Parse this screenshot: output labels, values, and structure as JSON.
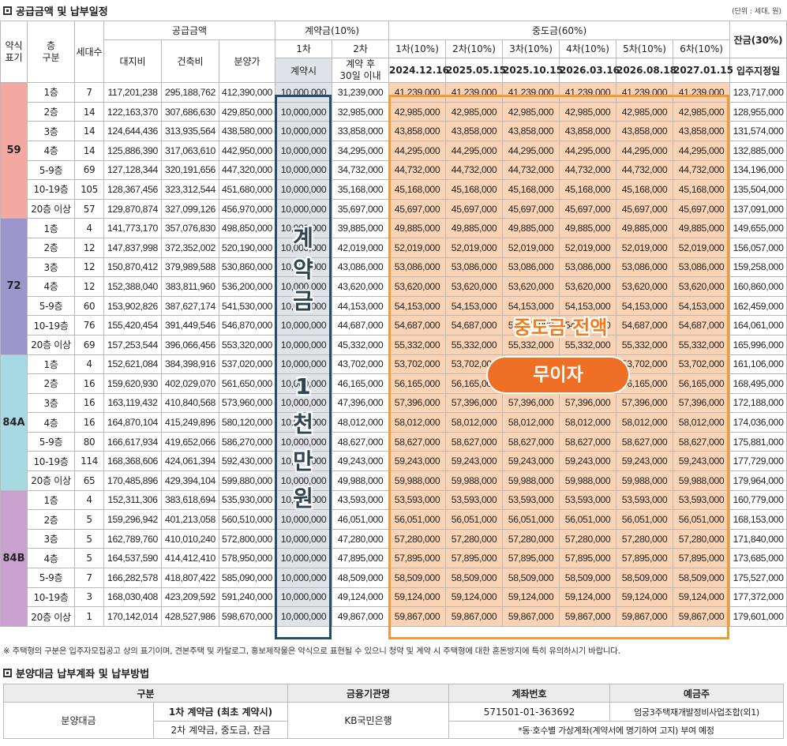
{
  "section1": {
    "title": "공급금액 및 납부일정",
    "unit": "(단위 : 세대, 원)"
  },
  "headers": {
    "type_label": "약식\n표기",
    "floor_label": "층\n구분",
    "count_label": "세대수",
    "supply_label": "공급금액",
    "land_label": "대지비",
    "build_label": "건축비",
    "sale_label": "분양가",
    "deposit_label": "계약금(10%)",
    "dep1_label": "1차",
    "dep2_label": "2차",
    "dep1_timing": "계약시",
    "dep2_timing": "계약 후\n30일 이내",
    "middle_label": "중도금(60%)",
    "middle_rounds": [
      "1차(10%)",
      "2차(10%)",
      "3차(10%)",
      "4차(10%)",
      "5차(10%)",
      "6차(10%)"
    ],
    "middle_dates": [
      "2024.12.16",
      "2025.05.15",
      "2025.10.15",
      "2026.03.16",
      "2026.08.18",
      "2027.01.15"
    ],
    "balance_label": "잔금(30%)",
    "balance_timing": "입주지정일"
  },
  "colors": {
    "type_59": "#f4a8a2",
    "type_72": "#9b95cb",
    "type_84A": "#a7d9e2",
    "type_84B": "#c8a1cf",
    "deposit_highlight": "#234e6f",
    "middle_highlight": "#f39a36",
    "badge": "#ef7024"
  },
  "groups": [
    {
      "type": "59",
      "rows": [
        {
          "floor": "1층",
          "count": "7",
          "land": "117,201,238",
          "build": "295,188,762",
          "price": "412,390,000",
          "dep1": "10,000,000",
          "dep2": "31,239,000",
          "mid": "41,239,000",
          "bal": "123,717,000"
        },
        {
          "floor": "2층",
          "count": "14",
          "land": "122,163,370",
          "build": "307,686,630",
          "price": "429,850,000",
          "dep1": "10,000,000",
          "dep2": "32,985,000",
          "mid": "42,985,000",
          "bal": "128,955,000"
        },
        {
          "floor": "3층",
          "count": "14",
          "land": "124,644,436",
          "build": "313,935,564",
          "price": "438,580,000",
          "dep1": "10,000,000",
          "dep2": "33,858,000",
          "mid": "43,858,000",
          "bal": "131,574,000"
        },
        {
          "floor": "4층",
          "count": "14",
          "land": "125,886,390",
          "build": "317,063,610",
          "price": "442,950,000",
          "dep1": "10,000,000",
          "dep2": "34,295,000",
          "mid": "44,295,000",
          "bal": "132,885,000"
        },
        {
          "floor": "5-9층",
          "count": "69",
          "land": "127,128,344",
          "build": "320,191,656",
          "price": "447,320,000",
          "dep1": "10,000,000",
          "dep2": "34,732,000",
          "mid": "44,732,000",
          "bal": "134,196,000"
        },
        {
          "floor": "10-19층",
          "count": "105",
          "land": "128,367,456",
          "build": "323,312,544",
          "price": "451,680,000",
          "dep1": "10,000,000",
          "dep2": "35,168,000",
          "mid": "45,168,000",
          "bal": "135,504,000"
        },
        {
          "floor": "20층 이상",
          "count": "57",
          "land": "129,870,874",
          "build": "327,099,126",
          "price": "456,970,000",
          "dep1": "10,000,000",
          "dep2": "35,697,000",
          "mid": "45,697,000",
          "bal": "137,091,000"
        }
      ]
    },
    {
      "type": "72",
      "rows": [
        {
          "floor": "1층",
          "count": "4",
          "land": "141,773,170",
          "build": "357,076,830",
          "price": "498,850,000",
          "dep1": "10,000,000",
          "dep2": "39,885,000",
          "mid": "49,885,000",
          "bal": "149,655,000"
        },
        {
          "floor": "2층",
          "count": "12",
          "land": "147,837,998",
          "build": "372,352,002",
          "price": "520,190,000",
          "dep1": "10,000,000",
          "dep2": "42,019,000",
          "mid": "52,019,000",
          "bal": "156,057,000"
        },
        {
          "floor": "3층",
          "count": "12",
          "land": "150,870,412",
          "build": "379,989,588",
          "price": "530,860,000",
          "dep1": "10,000,000",
          "dep2": "43,086,000",
          "mid": "53,086,000",
          "bal": "159,258,000"
        },
        {
          "floor": "4층",
          "count": "12",
          "land": "152,388,040",
          "build": "383,811,960",
          "price": "536,200,000",
          "dep1": "10,000,000",
          "dep2": "43,620,000",
          "mid": "53,620,000",
          "bal": "160,860,000"
        },
        {
          "floor": "5-9층",
          "count": "60",
          "land": "153,902,826",
          "build": "387,627,174",
          "price": "541,530,000",
          "dep1": "10,000,000",
          "dep2": "44,153,000",
          "mid": "54,153,000",
          "bal": "162,459,000"
        },
        {
          "floor": "10-19층",
          "count": "76",
          "land": "155,420,454",
          "build": "391,449,546",
          "price": "546,870,000",
          "dep1": "10,000,000",
          "dep2": "44,687,000",
          "mid": "54,687,000",
          "bal": "164,061,000"
        },
        {
          "floor": "20층 이상",
          "count": "69",
          "land": "157,253,544",
          "build": "396,066,456",
          "price": "553,320,000",
          "dep1": "10,000,000",
          "dep2": "45,332,000",
          "mid": "55,332,000",
          "bal": "165,996,000"
        }
      ]
    },
    {
      "type": "84A",
      "rows": [
        {
          "floor": "1층",
          "count": "4",
          "land": "152,621,084",
          "build": "384,398,916",
          "price": "537,020,000",
          "dep1": "10,000,000",
          "dep2": "43,702,000",
          "mid": "53,702,000",
          "bal": "161,106,000"
        },
        {
          "floor": "2층",
          "count": "16",
          "land": "159,620,930",
          "build": "402,029,070",
          "price": "561,650,000",
          "dep1": "10,000,000",
          "dep2": "46,165,000",
          "mid": "56,165,000",
          "bal": "168,495,000"
        },
        {
          "floor": "3층",
          "count": "16",
          "land": "163,119,432",
          "build": "410,840,568",
          "price": "573,960,000",
          "dep1": "10,000,000",
          "dep2": "47,396,000",
          "mid": "57,396,000",
          "bal": "172,188,000"
        },
        {
          "floor": "4층",
          "count": "16",
          "land": "164,870,104",
          "build": "415,249,896",
          "price": "580,120,000",
          "dep1": "10,000,000",
          "dep2": "48,012,000",
          "mid": "58,012,000",
          "bal": "174,036,000"
        },
        {
          "floor": "5-9층",
          "count": "80",
          "land": "166,617,934",
          "build": "419,652,066",
          "price": "586,270,000",
          "dep1": "10,000,000",
          "dep2": "48,627,000",
          "mid": "58,627,000",
          "bal": "175,881,000"
        },
        {
          "floor": "10-19층",
          "count": "114",
          "land": "168,368,606",
          "build": "424,061,394",
          "price": "592,430,000",
          "dep1": "10,000,000",
          "dep2": "49,243,000",
          "mid": "59,243,000",
          "bal": "177,729,000"
        },
        {
          "floor": "20층 이상",
          "count": "65",
          "land": "170,485,896",
          "build": "429,394,104",
          "price": "599,880,000",
          "dep1": "10,000,000",
          "dep2": "49,988,000",
          "mid": "59,988,000",
          "bal": "179,964,000"
        }
      ]
    },
    {
      "type": "84B",
      "rows": [
        {
          "floor": "1층",
          "count": "4",
          "land": "152,311,306",
          "build": "383,618,694",
          "price": "535,930,000",
          "dep1": "10,000,000",
          "dep2": "43,593,000",
          "mid": "53,593,000",
          "bal": "160,779,000"
        },
        {
          "floor": "2층",
          "count": "5",
          "land": "159,296,942",
          "build": "401,213,058",
          "price": "560,510,000",
          "dep1": "10,000,000",
          "dep2": "46,051,000",
          "mid": "56,051,000",
          "bal": "168,153,000"
        },
        {
          "floor": "3층",
          "count": "5",
          "land": "162,789,760",
          "build": "410,010,240",
          "price": "572,800,000",
          "dep1": "10,000,000",
          "dep2": "47,280,000",
          "mid": "57,280,000",
          "bal": "171,840,000"
        },
        {
          "floor": "4층",
          "count": "5",
          "land": "164,537,590",
          "build": "414,412,410",
          "price": "578,950,000",
          "dep1": "10,000,000",
          "dep2": "47,895,000",
          "mid": "57,895,000",
          "bal": "173,685,000"
        },
        {
          "floor": "5-9층",
          "count": "7",
          "land": "166,282,578",
          "build": "418,807,422",
          "price": "585,090,000",
          "dep1": "10,000,000",
          "dep2": "48,509,000",
          "mid": "58,509,000",
          "bal": "175,527,000"
        },
        {
          "floor": "10-19층",
          "count": "3",
          "land": "168,030,408",
          "build": "423,209,592",
          "price": "591,240,000",
          "dep1": "10,000,000",
          "dep2": "49,124,000",
          "mid": "59,124,000",
          "bal": "177,372,000"
        },
        {
          "floor": "20층 이상",
          "count": "1",
          "land": "170,142,014",
          "build": "428,527,986",
          "price": "598,670,000",
          "dep1": "10,000,000",
          "dep2": "49,867,000",
          "mid": "59,867,000",
          "bal": "179,601,000"
        }
      ]
    }
  ],
  "overlay": {
    "deposit_chars": [
      "계",
      "약",
      "금",
      "1",
      "천",
      "만",
      "원"
    ],
    "middle_title": "중도금 전액",
    "middle_badge": "무이자"
  },
  "note": "※ 주택형의 구분은 입주자모집공고 상의 표기이며, 견본주택 및 카탈로그, 홍보제작물은 약식으로 표현될 수 있으니 청약 및 계약 시 주택형에 대한 혼돈방지에 특히 유의하시기 바랍니다.",
  "section2": {
    "title": "분양대금 납부계좌 및 납부방법",
    "headers": [
      "구분",
      "금융기관명",
      "계좌번호",
      "예금주"
    ],
    "category": "분양대금",
    "item1": "1차 계약금 (최초 계약시)",
    "item2": "2차 계약금, 중도금, 잔금",
    "bank": "KB국민은행",
    "account": "571501-01-363692",
    "holder": "엄궁3주택재개발정비사업조합(외1)",
    "virtual_note": "*동·호수별 가상계좌(계약서에 명기하여 고지) 부여 예정"
  }
}
